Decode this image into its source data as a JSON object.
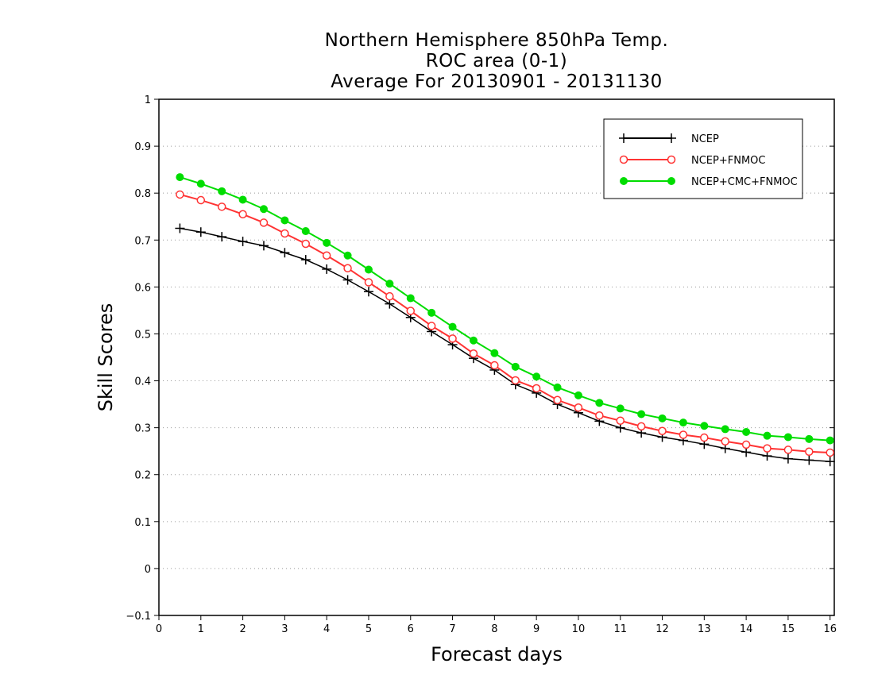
{
  "chart_data": {
    "type": "line",
    "title_lines": [
      "Northern Hemisphere 850hPa Temp.",
      "ROC area (0-1)",
      "Average For 20130901 - 20131130"
    ],
    "xlabel": "Forecast days",
    "ylabel": "Skill Scores",
    "xlim": [
      0,
      16.1
    ],
    "ylim": [
      -0.1,
      1
    ],
    "x_ticks": [
      0,
      1,
      2,
      3,
      4,
      5,
      6,
      7,
      8,
      9,
      10,
      11,
      12,
      13,
      14,
      15,
      16
    ],
    "y_ticks": [
      -0.1,
      0,
      0.1,
      0.2,
      0.3,
      0.4,
      0.5,
      0.6,
      0.7,
      0.8,
      0.9,
      1
    ],
    "y_tick_labels": [
      "−0.1",
      "0",
      "0.1",
      "0.2",
      "0.3",
      "0.4",
      "0.5",
      "0.6",
      "0.7",
      "0.8",
      "0.9",
      "1"
    ],
    "grid": "horizontal dotted",
    "legend_position": "top-right",
    "x": [
      0.5,
      1,
      1.5,
      2,
      2.5,
      3,
      3.5,
      4,
      4.5,
      5,
      5.5,
      6,
      6.5,
      7,
      7.5,
      8,
      8.5,
      9,
      9.5,
      10,
      10.5,
      11,
      11.5,
      12,
      12.5,
      13,
      13.5,
      14,
      14.5,
      15,
      15.5,
      16
    ],
    "series": [
      {
        "name": "NCEP",
        "color": "#000000",
        "marker": "plus",
        "values": [
          0.725,
          0.717,
          0.707,
          0.697,
          0.688,
          0.673,
          0.658,
          0.638,
          0.615,
          0.59,
          0.564,
          0.535,
          0.505,
          0.477,
          0.448,
          0.423,
          0.392,
          0.374,
          0.35,
          0.332,
          0.314,
          0.3,
          0.289,
          0.28,
          0.273,
          0.265,
          0.256,
          0.248,
          0.24,
          0.234,
          0.231,
          0.228
        ]
      },
      {
        "name": "NCEP+FNMOC",
        "color": "#ff3333",
        "marker": "open-circle",
        "values": [
          0.797,
          0.785,
          0.771,
          0.755,
          0.737,
          0.714,
          0.692,
          0.667,
          0.64,
          0.61,
          0.58,
          0.549,
          0.517,
          0.49,
          0.458,
          0.433,
          0.401,
          0.384,
          0.359,
          0.343,
          0.326,
          0.315,
          0.303,
          0.293,
          0.285,
          0.279,
          0.271,
          0.264,
          0.256,
          0.253,
          0.249,
          0.247
        ]
      },
      {
        "name": "NCEP+CMC+FNMOC",
        "color": "#00dd00",
        "marker": "filled-circle",
        "values": [
          0.834,
          0.82,
          0.804,
          0.786,
          0.766,
          0.742,
          0.719,
          0.694,
          0.667,
          0.637,
          0.607,
          0.576,
          0.545,
          0.515,
          0.486,
          0.459,
          0.43,
          0.409,
          0.386,
          0.369,
          0.353,
          0.341,
          0.329,
          0.32,
          0.311,
          0.304,
          0.297,
          0.291,
          0.283,
          0.28,
          0.276,
          0.273
        ]
      }
    ]
  }
}
